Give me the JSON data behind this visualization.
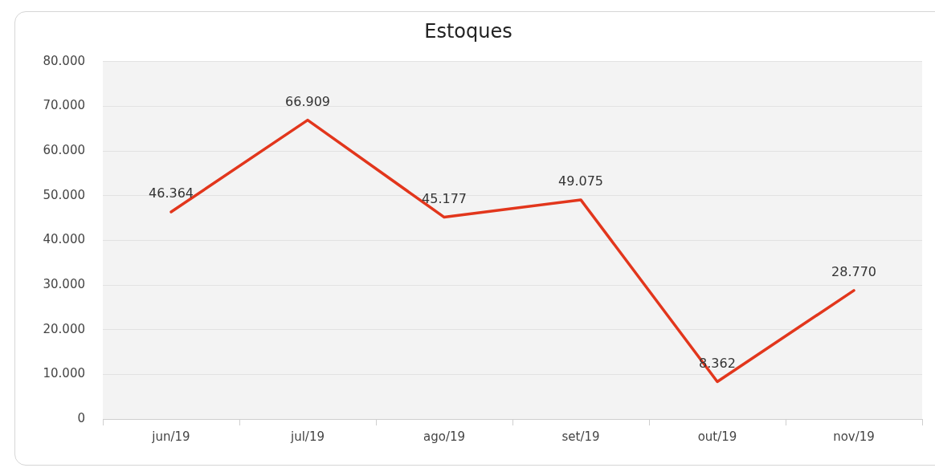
{
  "chart_data": {
    "type": "line",
    "title": "Estoques",
    "categories": [
      "jun/19",
      "jul/19",
      "ago/19",
      "set/19",
      "out/19",
      "nov/19"
    ],
    "series": [
      {
        "color": "#e2361c",
        "values": [
          46364,
          66909,
          45177,
          49075,
          8362,
          28770
        ],
        "value_labels": [
          "46.364",
          "66.909",
          "45.177",
          "49.075",
          "8.362",
          "28.770"
        ]
      }
    ],
    "ylim": [
      0,
      80000
    ],
    "yticks": [
      {
        "value": 0,
        "label": "0"
      },
      {
        "value": 10000,
        "label": "10.000"
      },
      {
        "value": 20000,
        "label": "20.000"
      },
      {
        "value": 30000,
        "label": "30.000"
      },
      {
        "value": 40000,
        "label": "40.000"
      },
      {
        "value": 50000,
        "label": "50.000"
      },
      {
        "value": 60000,
        "label": "60.000"
      },
      {
        "value": 70000,
        "label": "70.000"
      },
      {
        "value": 80000,
        "label": "80.000"
      }
    ],
    "grid": "y",
    "legend": false,
    "marker": "none",
    "line_style": "solid"
  }
}
